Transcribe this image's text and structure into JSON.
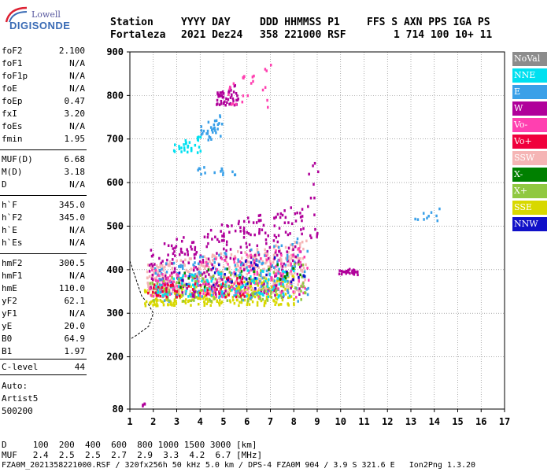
{
  "logo": {
    "lowell": "Lowell",
    "digisonde": "DIGISONDE"
  },
  "header": {
    "line1": [
      "Station",
      "YYYY DAY",
      "DDD HHMMSS P1",
      "FFS S AXN PPS IGA PS"
    ],
    "line2": [
      "Fortaleza",
      "2021 Dez24",
      "358 221000 RSF",
      "1 714 100 10+ 11"
    ]
  },
  "params": [
    {
      "k": "foF2",
      "v": "2.100"
    },
    {
      "k": "foF1",
      "v": "N/A"
    },
    {
      "k": "foF1p",
      "v": "N/A"
    },
    {
      "k": "foE",
      "v": "N/A"
    },
    {
      "k": "foEp",
      "v": "0.47"
    },
    {
      "k": "fxI",
      "v": "3.20"
    },
    {
      "k": "foEs",
      "v": "N/A"
    },
    {
      "k": "fmin",
      "v": "1.95"
    },
    {
      "k": "MUF(D)",
      "v": "6.68"
    },
    {
      "k": "M(D)",
      "v": "3.18"
    },
    {
      "k": "D",
      "v": "N/A"
    },
    {
      "k": "h`F",
      "v": "345.0"
    },
    {
      "k": "h`F2",
      "v": "345.0"
    },
    {
      "k": "h`E",
      "v": "N/A"
    },
    {
      "k": "h`Es",
      "v": "N/A"
    },
    {
      "k": "hmF2",
      "v": "300.5"
    },
    {
      "k": "hmF1",
      "v": "N/A"
    },
    {
      "k": "hmE",
      "v": "110.0"
    },
    {
      "k": "yF2",
      "v": "62.1"
    },
    {
      "k": "yF1",
      "v": "N/A"
    },
    {
      "k": "yE",
      "v": "20.0"
    },
    {
      "k": "B0",
      "v": "64.9"
    },
    {
      "k": "B1",
      "v": "1.97"
    },
    {
      "k": "C-level",
      "v": "44"
    }
  ],
  "auto": {
    "line1": "Auto:",
    "line2": "Artist5",
    "line3": "500200"
  },
  "legend": [
    {
      "label": "NoVal",
      "color": "#8c8c8c"
    },
    {
      "label": "NNE",
      "color": "#00e0f0"
    },
    {
      "label": "E",
      "color": "#3aa0e8"
    },
    {
      "label": "W",
      "color": "#b0009a"
    },
    {
      "label": "Vo-",
      "color": "#ff40b0"
    },
    {
      "label": "Vo+",
      "color": "#f0003c"
    },
    {
      "label": "SSW",
      "color": "#f5b5b5"
    },
    {
      "label": "X-",
      "color": "#008000"
    },
    {
      "label": "X+",
      "color": "#90c840"
    },
    {
      "label": "SSE",
      "color": "#d8d800"
    },
    {
      "label": "NNW",
      "color": "#1010c8"
    }
  ],
  "footer": {
    "line1": "D     100  200  400  600  800 1000 1500 3000 [km]",
    "line2": "MUF   2.4  2.5  2.5  2.7  2.9  3.3  4.2  6.7 [MHz]",
    "line3": "FZA0M_2021358221000.RSF / 320fx256h 50 kHz 5.0 km / DPS-4 FZA0M 904 / 3.9 S 321.6 E   Ion2Png 1.3.20"
  },
  "chart_data": {
    "type": "scatter",
    "xlim": [
      1,
      17
    ],
    "ylim": [
      80,
      900
    ],
    "x_ticks": [
      "1",
      "2",
      "3",
      "4",
      "5",
      "6",
      "7",
      "8",
      "9",
      "10",
      "11",
      "12",
      "13",
      "14",
      "15",
      "16",
      "17"
    ],
    "y_ticks": [
      "80",
      "200",
      "300",
      "400",
      "500",
      "600",
      "700",
      "800",
      "900"
    ],
    "grid": true,
    "profile": [
      [
        1.0,
        420
      ],
      [
        1.5,
        340
      ],
      [
        1.8,
        320
      ],
      [
        2.0,
        300
      ],
      [
        1.8,
        270
      ],
      [
        1.3,
        250
      ],
      [
        1.0,
        240
      ]
    ],
    "clusters": [
      {
        "color": "#d8d800",
        "x": [
          1.6,
          8.0
        ],
        "y": [
          320,
          390
        ],
        "n": 320
      },
      {
        "color": "#f5b5b5",
        "x": [
          1.7,
          8.5
        ],
        "y": [
          350,
          470
        ],
        "n": 420
      },
      {
        "color": "#b0009a",
        "x": [
          1.8,
          8.4
        ],
        "y": [
          340,
          560
        ],
        "n": 320
      },
      {
        "color": "#3aa0e8",
        "x": [
          2.0,
          8.6
        ],
        "y": [
          330,
          480
        ],
        "n": 160
      },
      {
        "color": "#ff40b0",
        "x": [
          1.8,
          8.6
        ],
        "y": [
          340,
          460
        ],
        "n": 160
      },
      {
        "color": "#90c840",
        "x": [
          1.8,
          8.6
        ],
        "y": [
          330,
          420
        ],
        "n": 120
      },
      {
        "color": "#00e0f0",
        "x": [
          2.0,
          8.0
        ],
        "y": [
          340,
          420
        ],
        "n": 90
      },
      {
        "color": "#f0003c",
        "x": [
          1.7,
          6.0
        ],
        "y": [
          340,
          390
        ],
        "n": 50
      },
      {
        "color": "#1010c8",
        "x": [
          3.0,
          8.5
        ],
        "y": [
          360,
          440
        ],
        "n": 30
      },
      {
        "color": "#008000",
        "x": [
          3.0,
          8.5
        ],
        "y": [
          360,
          430
        ],
        "n": 20
      },
      {
        "color": "#00e0f0",
        "x": [
          2.8,
          4.0
        ],
        "y": [
          670,
          710
        ],
        "n": 30
      },
      {
        "color": "#3aa0e8",
        "x": [
          4.0,
          4.9
        ],
        "y": [
          700,
          760
        ],
        "n": 30
      },
      {
        "color": "#b0009a",
        "x": [
          4.6,
          5.6
        ],
        "y": [
          780,
          830
        ],
        "n": 50
      },
      {
        "color": "#ff40b0",
        "x": [
          5.0,
          7.2
        ],
        "y": [
          770,
          880
        ],
        "n": 25
      },
      {
        "color": "#3aa0e8",
        "x": [
          3.8,
          5.5
        ],
        "y": [
          620,
          650
        ],
        "n": 15
      },
      {
        "color": "#b0009a",
        "x": [
          9.9,
          10.9
        ],
        "y": [
          390,
          410
        ],
        "n": 25
      },
      {
        "color": "#b0009a",
        "x": [
          8.5,
          9.0
        ],
        "y": [
          460,
          720
        ],
        "n": 15
      },
      {
        "color": "#3aa0e8",
        "x": [
          13.0,
          14.2
        ],
        "y": [
          515,
          545
        ],
        "n": 10
      },
      {
        "color": "#b0009a",
        "x": [
          1.5,
          1.7
        ],
        "y": [
          90,
          98
        ],
        "n": 4
      }
    ]
  }
}
